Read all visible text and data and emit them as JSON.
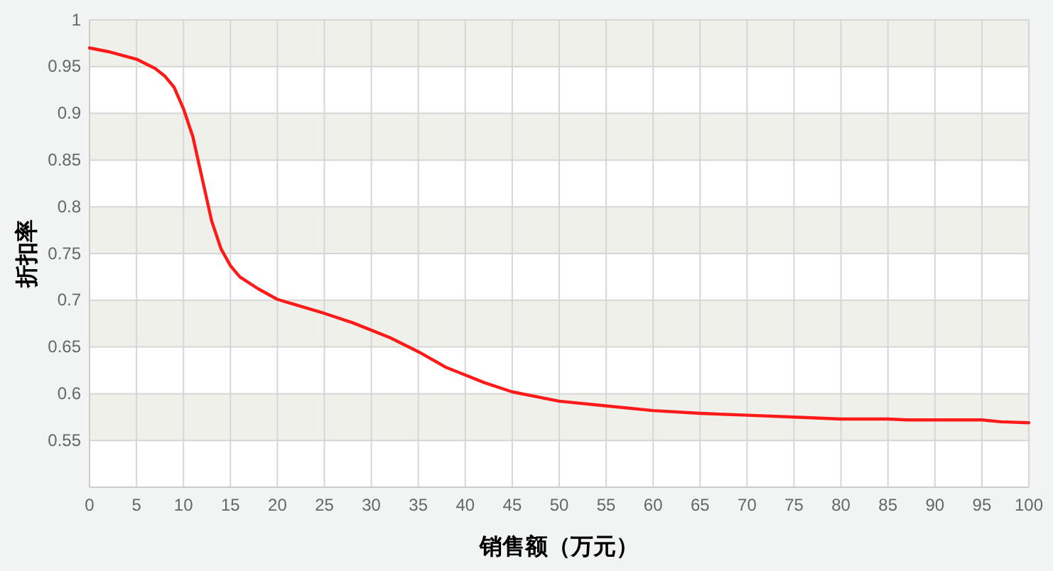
{
  "chart_data": {
    "type": "line",
    "xlabel": "销售额（万元）",
    "ylabel": "折扣率",
    "x": [
      0,
      2,
      5,
      7,
      8,
      9,
      10,
      11,
      12,
      13,
      14,
      15,
      16,
      18,
      20,
      22,
      25,
      28,
      30,
      32,
      35,
      38,
      40,
      42,
      45,
      48,
      50,
      55,
      60,
      65,
      70,
      75,
      80,
      85,
      87,
      90,
      95,
      97,
      100
    ],
    "series": [
      {
        "color": "#ff1a1a",
        "values": [
          0.97,
          0.966,
          0.958,
          0.948,
          0.94,
          0.928,
          0.905,
          0.875,
          0.83,
          0.785,
          0.755,
          0.737,
          0.725,
          0.712,
          0.701,
          0.695,
          0.686,
          0.676,
          0.668,
          0.66,
          0.645,
          0.628,
          0.62,
          0.612,
          0.602,
          0.596,
          0.592,
          0.587,
          0.582,
          0.579,
          0.577,
          0.575,
          0.573,
          0.573,
          0.572,
          0.572,
          0.572,
          0.57,
          0.569
        ]
      }
    ],
    "xlim": [
      0,
      100
    ],
    "xticks": [
      0,
      5,
      10,
      15,
      20,
      25,
      30,
      35,
      40,
      45,
      50,
      55,
      60,
      65,
      70,
      75,
      80,
      85,
      90,
      95,
      100
    ],
    "ylim": [
      0.5,
      1
    ],
    "yticks": [
      {
        "value": 0.5,
        "label": null
      },
      0.55,
      0.6,
      0.65,
      0.7,
      0.75,
      0.8,
      0.85,
      0.9,
      0.95,
      1
    ],
    "grid": true,
    "marker": "none",
    "line_style": "solid"
  }
}
